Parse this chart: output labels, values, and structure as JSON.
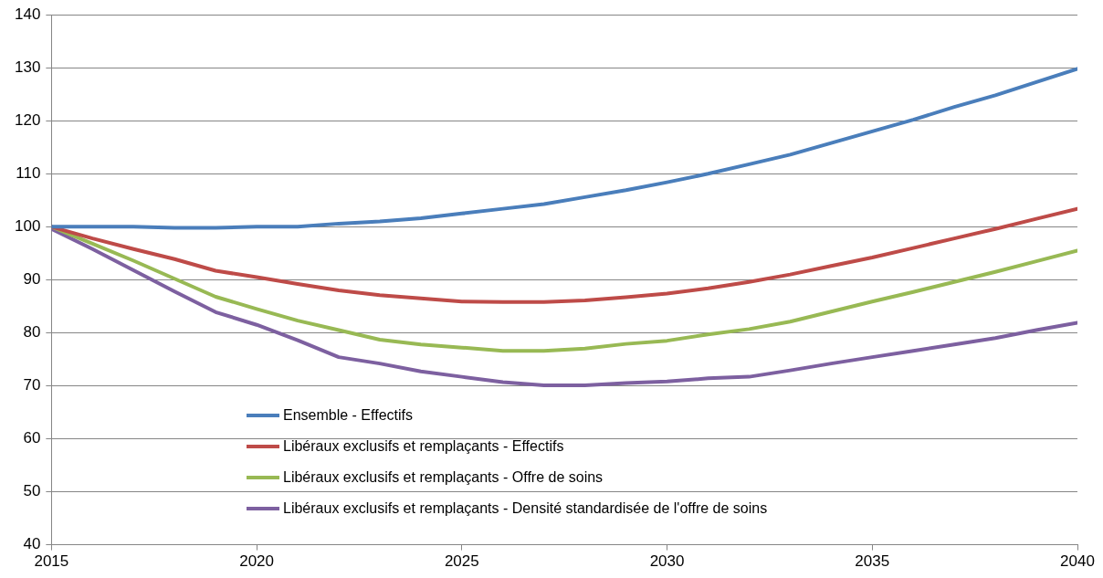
{
  "chart_data": {
    "type": "line",
    "x": [
      2015,
      2016,
      2017,
      2018,
      2019,
      2020,
      2021,
      2022,
      2023,
      2024,
      2025,
      2026,
      2027,
      2028,
      2029,
      2030,
      2031,
      2032,
      2033,
      2034,
      2035,
      2036,
      2037,
      2038,
      2039,
      2040
    ],
    "series": [
      {
        "name": "Ensemble - Effectifs",
        "color": "#4a7ebb",
        "values": [
          100,
          100,
          100,
          99.8,
          99.8,
          100,
          100,
          100.6,
          101,
          101.6,
          102.5,
          103.4,
          104.3,
          105.6,
          106.9,
          108.4,
          110,
          111.8,
          113.6,
          115.8,
          118,
          120.2,
          122.6,
          124.8,
          127.3,
          129.8
        ]
      },
      {
        "name": "Libéraux exclusifs et remplaçants - Effectifs",
        "color": "#be4b48",
        "values": [
          100,
          97.8,
          95.8,
          93.9,
          91.7,
          90.5,
          89.2,
          88,
          87.1,
          86.5,
          85.9,
          85.8,
          85.8,
          86.1,
          86.7,
          87.4,
          88.4,
          89.6,
          91,
          92.6,
          94.2,
          96,
          97.8,
          99.6,
          101.5,
          103.4
        ]
      },
      {
        "name": "Libéraux exclusifs et remplaçants - Offre de soins",
        "color": "#98b954",
        "values": [
          100,
          96.8,
          93.6,
          90.2,
          86.8,
          84.5,
          82.3,
          80.5,
          78.7,
          77.8,
          77.2,
          76.6,
          76.6,
          77,
          77.9,
          78.5,
          79.7,
          80.7,
          82.1,
          84,
          85.9,
          87.7,
          89.6,
          91.5,
          93.5,
          95.5
        ]
      },
      {
        "name": "Libéraux exclusifs et remplaçants - Densité standardisée de l'offre de soins",
        "color": "#7d60a0",
        "values": [
          99.6,
          95.8,
          91.8,
          87.8,
          83.9,
          81.5,
          78.6,
          75.4,
          74.2,
          72.7,
          71.7,
          70.7,
          70.1,
          70.1,
          70.5,
          70.8,
          71.4,
          71.7,
          72.9,
          74.2,
          75.4,
          76.6,
          77.8,
          79,
          80.5,
          81.9
        ]
      }
    ],
    "xlim": [
      2015,
      2040
    ],
    "xticks": [
      2015,
      2020,
      2025,
      2030,
      2035,
      2040
    ],
    "ylim": [
      40,
      140
    ],
    "yticks": [
      40,
      50,
      60,
      70,
      80,
      90,
      100,
      110,
      120,
      130,
      140
    ],
    "grid": "y",
    "legend": "bottom",
    "marker": "none",
    "line_style": "solid"
  }
}
